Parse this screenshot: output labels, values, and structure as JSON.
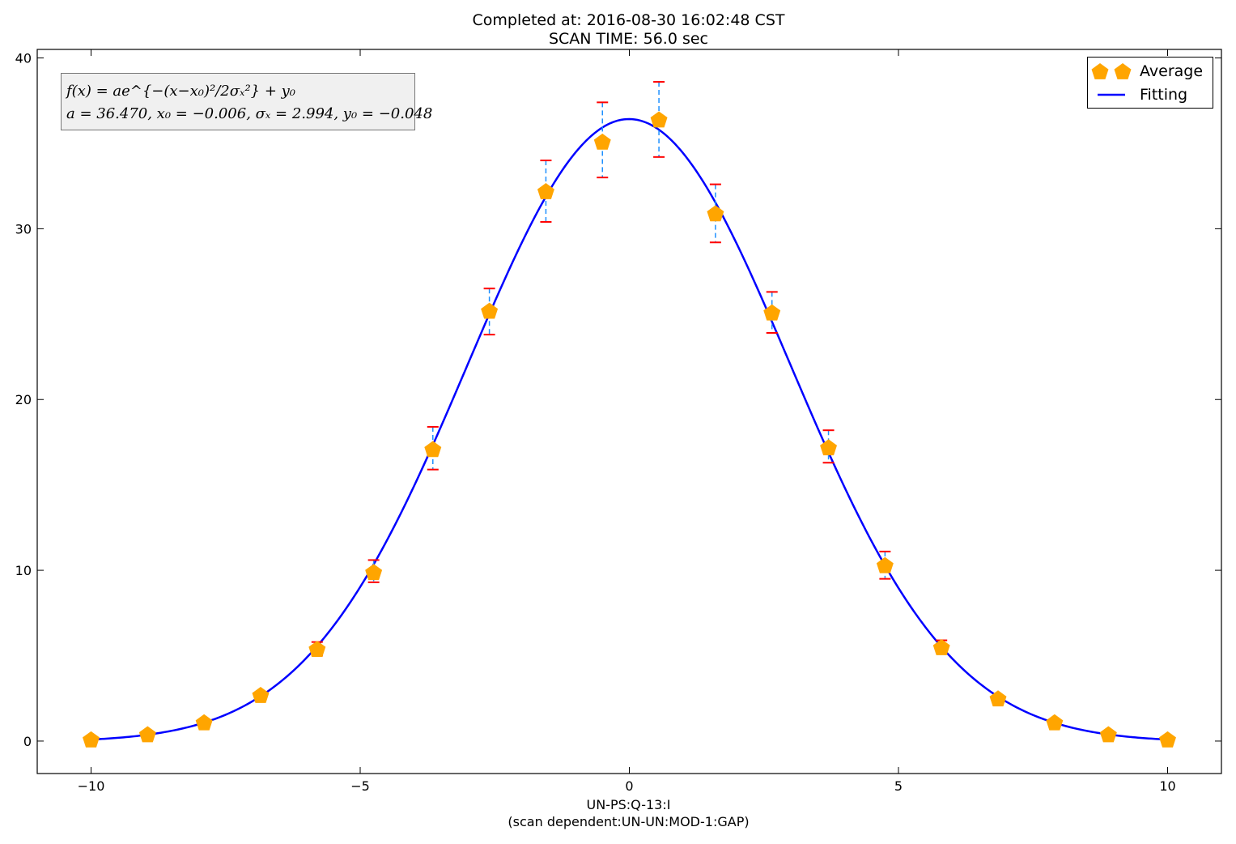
{
  "chart_data": {
    "type": "scatter",
    "title": [
      "Completed at: 2016-08-30 16:02:48 CST",
      "SCAN TIME: 56.0 sec"
    ],
    "xlabel": [
      "UN-PS:Q-13:I",
      "(scan dependent:UN-UN:MOD-1:GAP)"
    ],
    "ylabel": "",
    "xlim": [
      -11,
      11
    ],
    "ylim": [
      -1.9,
      40.5
    ],
    "xticks": [
      -10,
      -5,
      0,
      5,
      10
    ],
    "yticks": [
      0,
      10,
      20,
      30,
      40
    ],
    "grid": false,
    "legend_position": "top-right",
    "series": [
      {
        "name": "Average",
        "kind": "points",
        "marker": "pentagon",
        "color": "#ffa500",
        "errorbar_color": "#ff0000",
        "errorbar_line_color": "#1e90ff",
        "x": [
          -10.0,
          -8.95,
          -7.9,
          -6.85,
          -5.8,
          -4.75,
          -3.65,
          -2.6,
          -1.55,
          -0.5,
          0.55,
          1.6,
          2.65,
          3.7,
          4.75,
          5.8,
          6.85,
          7.9,
          8.9,
          10.0
        ],
        "y": [
          0.1,
          0.4,
          1.1,
          2.7,
          5.4,
          9.9,
          17.1,
          25.2,
          32.2,
          35.1,
          36.4,
          30.9,
          25.1,
          17.2,
          10.3,
          5.5,
          2.5,
          1.1,
          0.4,
          0.1
        ],
        "y_low": [
          0.1,
          0.4,
          1.1,
          2.7,
          5.0,
          9.3,
          15.9,
          23.8,
          30.4,
          33.0,
          34.2,
          29.2,
          23.9,
          16.3,
          9.5,
          5.3,
          2.5,
          1.1,
          0.4,
          0.1
        ],
        "y_high": [
          0.1,
          0.4,
          1.1,
          2.7,
          5.8,
          10.6,
          18.4,
          26.5,
          34.0,
          37.4,
          38.6,
          32.6,
          26.3,
          18.2,
          11.1,
          5.9,
          2.5,
          1.1,
          0.4,
          0.1
        ]
      },
      {
        "name": "Fitting",
        "kind": "curve",
        "color": "#0000ff",
        "model": "gaussian",
        "params": {
          "a": 36.47,
          "x0": -0.006,
          "sigma_x": 2.994,
          "y0": -0.048
        },
        "x_range": [
          -10,
          10
        ]
      }
    ],
    "annotation": {
      "formula": "f(x) = ae^{−(x−x₀)²/2σₓ²} + y₀",
      "values": "a = 36.470, x₀ = −0.006, σₓ = 2.994, y₀ = −0.048"
    }
  }
}
